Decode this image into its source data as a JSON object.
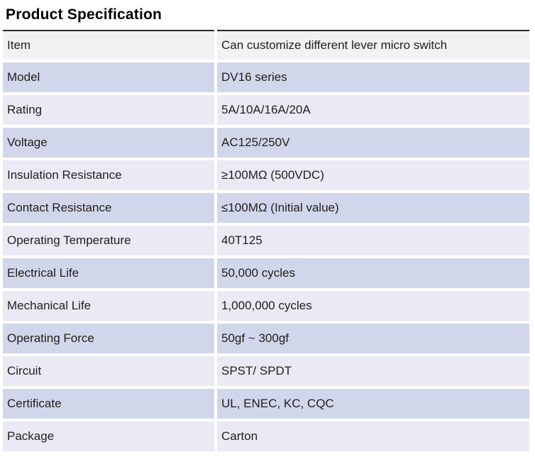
{
  "title": "Product Specification",
  "colors": {
    "page_bg": "#ffffff",
    "text": "#1f1f1f",
    "top_border": "#262626",
    "header_row_bg": "#f2f2f2",
    "medium_row_bg": "#d2d6ea",
    "light_row_bg": "#e9eaf4"
  },
  "table": {
    "rows": [
      {
        "label": "Item",
        "value": "Can customize different lever micro switch"
      },
      {
        "label": "Model",
        "value": "DV16 series"
      },
      {
        "label": "Rating",
        "value": "5A/10A/16A/20A"
      },
      {
        "label": "Voltage",
        "value": "AC125/250V"
      },
      {
        "label": "Insulation Resistance",
        "value": "≥100MΩ (500VDC)"
      },
      {
        "label": "Contact Resistance",
        "value": "≤100MΩ (Initial value)"
      },
      {
        "label": "Operating Temperature",
        "value": "40T125"
      },
      {
        "label": "Electrical Life",
        "value": "50,000 cycles"
      },
      {
        "label": "Mechanical Life",
        "value": "1,000,000 cycles"
      },
      {
        "label": "Operating Force",
        "value": "50gf ~ 300gf"
      },
      {
        "label": "Circuit",
        "value": "SPST/ SPDT"
      },
      {
        "label": "Certificate",
        "value": "UL, ENEC, KC, CQC"
      },
      {
        "label": "Package",
        "value": "Carton"
      }
    ]
  }
}
